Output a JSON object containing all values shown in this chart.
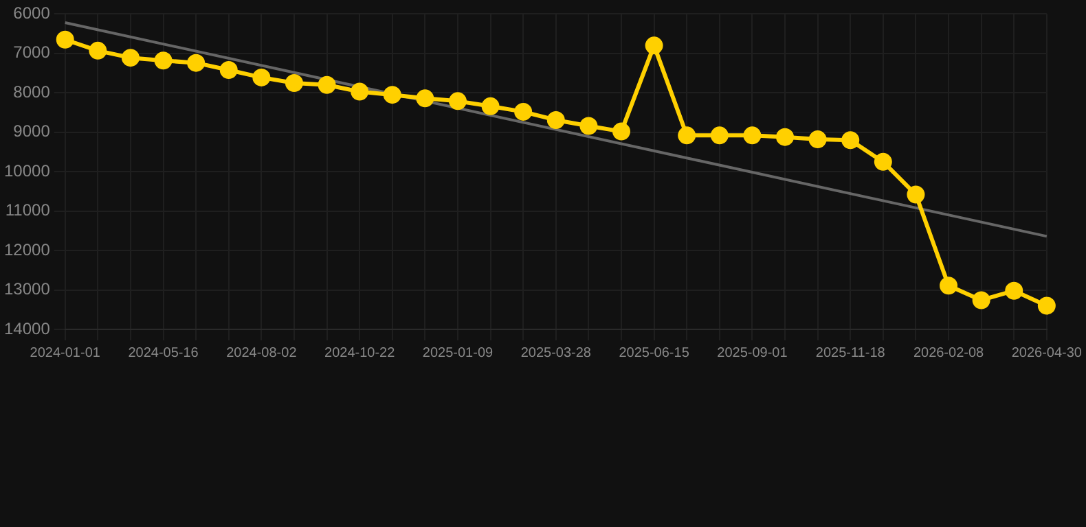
{
  "chart_data": {
    "type": "line",
    "categories": [
      "2024-01-01",
      null,
      null,
      "2024-05-16",
      null,
      null,
      "2024-08-02",
      null,
      null,
      "2024-10-22",
      null,
      null,
      "2025-01-09",
      null,
      null,
      "2025-03-28",
      null,
      null,
      "2025-06-15",
      null,
      null,
      "2025-09-01",
      null,
      null,
      "2025-11-18",
      null,
      null,
      "2026-02-08",
      null,
      null,
      "2026-04-30"
    ],
    "series": [
      {
        "color": "#ffd000",
        "marker": "circle",
        "values": [
          6650,
          6930,
          7110,
          7180,
          7240,
          7420,
          7610,
          7750,
          7800,
          7970,
          8050,
          8140,
          8210,
          8340,
          8480,
          8690,
          8840,
          8980,
          6800,
          9080,
          9080,
          9080,
          9120,
          9180,
          9200,
          9750,
          10580,
          12890,
          13260,
          13020,
          13400
        ]
      },
      {
        "type": "line",
        "color": "#666666",
        "marker": "none",
        "values": [
          6220,
          null,
          null,
          null,
          null,
          null,
          null,
          null,
          null,
          null,
          null,
          null,
          null,
          null,
          null,
          null,
          null,
          null,
          null,
          null,
          null,
          null,
          null,
          null,
          null,
          null,
          null,
          null,
          null,
          null,
          11640
        ]
      }
    ],
    "ylim": [
      14000,
      6000
    ],
    "yticks": [
      6000,
      7000,
      8000,
      9000,
      10000,
      11000,
      12000,
      13000,
      14000
    ],
    "grid": true
  }
}
